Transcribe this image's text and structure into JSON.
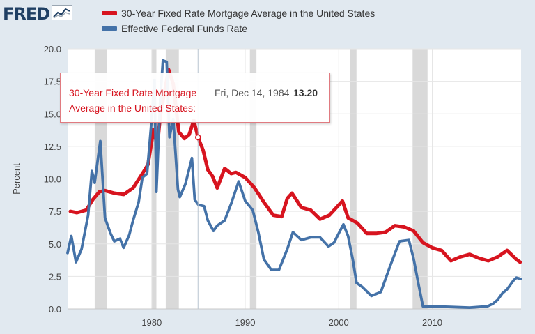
{
  "header": {
    "logo": "FRED",
    "logo_icon": "line-chart-icon"
  },
  "legend": [
    {
      "label": "30-Year Fixed Rate Mortgage Average in the United States",
      "color": "#d7141f"
    },
    {
      "label": "Effective Federal Funds Rate",
      "color": "#4472a8"
    }
  ],
  "tooltip": {
    "series": "30-Year Fixed Rate Mortgage Average in the United States:",
    "date": "Fri, Dec 14, 1984",
    "value": "13.20"
  },
  "chart_data": {
    "type": "line",
    "ylabel": "Percent",
    "ylim": [
      0,
      20
    ],
    "xlim": [
      1971.0,
      2019.5
    ],
    "yticks": [
      "0.0",
      "2.5",
      "5.0",
      "7.5",
      "10.0",
      "12.5",
      "15.0",
      "17.5",
      "20.0"
    ],
    "xticks": [
      "1980",
      "1990",
      "2000",
      "2010"
    ],
    "grid": true,
    "recessions": [
      [
        1973.9,
        1975.2
      ],
      [
        1980.0,
        1980.5
      ],
      [
        1981.5,
        1982.9
      ],
      [
        1990.5,
        1991.2
      ],
      [
        2001.2,
        2001.9
      ],
      [
        2007.9,
        2009.5
      ]
    ],
    "series": [
      {
        "name": "30-Year Fixed Rate Mortgage Average in the United States",
        "color": "#d7141f",
        "points": [
          [
            1971.3,
            7.5
          ],
          [
            1972,
            7.4
          ],
          [
            1973,
            7.6
          ],
          [
            1973.7,
            8.4
          ],
          [
            1974.4,
            9.0
          ],
          [
            1975,
            9.1
          ],
          [
            1976,
            8.9
          ],
          [
            1977,
            8.8
          ],
          [
            1978,
            9.3
          ],
          [
            1979,
            10.4
          ],
          [
            1979.6,
            11.1
          ],
          [
            1980.2,
            13.8
          ],
          [
            1980.6,
            12.5
          ],
          [
            1980.9,
            14.8
          ],
          [
            1981.3,
            16.4
          ],
          [
            1981.8,
            18.4
          ],
          [
            1982.3,
            17.3
          ],
          [
            1982.9,
            13.6
          ],
          [
            1983.5,
            13.1
          ],
          [
            1984.0,
            13.4
          ],
          [
            1984.5,
            14.5
          ],
          [
            1984.95,
            13.2
          ],
          [
            1985.5,
            12.2
          ],
          [
            1986,
            10.7
          ],
          [
            1986.5,
            10.2
          ],
          [
            1987,
            9.3
          ],
          [
            1987.8,
            10.8
          ],
          [
            1988.5,
            10.4
          ],
          [
            1989,
            10.5
          ],
          [
            1990,
            10.1
          ],
          [
            1991,
            9.3
          ],
          [
            1992,
            8.2
          ],
          [
            1993,
            7.2
          ],
          [
            1993.9,
            7.1
          ],
          [
            1994.5,
            8.5
          ],
          [
            1995,
            8.9
          ],
          [
            1996,
            7.8
          ],
          [
            1997,
            7.6
          ],
          [
            1998,
            6.9
          ],
          [
            1999,
            7.2
          ],
          [
            2000.4,
            8.3
          ],
          [
            2001,
            7.0
          ],
          [
            2002,
            6.6
          ],
          [
            2003,
            5.8
          ],
          [
            2004,
            5.8
          ],
          [
            2005,
            5.9
          ],
          [
            2006,
            6.4
          ],
          [
            2007,
            6.3
          ],
          [
            2008,
            6.0
          ],
          [
            2009,
            5.1
          ],
          [
            2010,
            4.7
          ],
          [
            2011,
            4.5
          ],
          [
            2012,
            3.7
          ],
          [
            2013,
            4.0
          ],
          [
            2014,
            4.2
          ],
          [
            2015,
            3.9
          ],
          [
            2016,
            3.7
          ],
          [
            2017,
            4.0
          ],
          [
            2018,
            4.5
          ],
          [
            2019,
            3.8
          ],
          [
            2019.4,
            3.6
          ]
        ]
      },
      {
        "name": "Effective Federal Funds Rate",
        "color": "#4472a8",
        "points": [
          [
            1971.0,
            4.3
          ],
          [
            1971.4,
            5.6
          ],
          [
            1971.9,
            3.6
          ],
          [
            1972.5,
            4.6
          ],
          [
            1973.2,
            7.2
          ],
          [
            1973.6,
            10.6
          ],
          [
            1973.9,
            9.7
          ],
          [
            1974.5,
            12.9
          ],
          [
            1975,
            7.0
          ],
          [
            1975.6,
            5.8
          ],
          [
            1976,
            5.2
          ],
          [
            1976.6,
            5.4
          ],
          [
            1977,
            4.7
          ],
          [
            1977.6,
            5.7
          ],
          [
            1978,
            6.8
          ],
          [
            1978.6,
            8.2
          ],
          [
            1979,
            10.1
          ],
          [
            1979.5,
            10.4
          ],
          [
            1979.9,
            13.8
          ],
          [
            1980.3,
            17.6
          ],
          [
            1980.5,
            9.0
          ],
          [
            1980.9,
            16.0
          ],
          [
            1981.2,
            19.1
          ],
          [
            1981.6,
            19.0
          ],
          [
            1981.9,
            13.2
          ],
          [
            1982.3,
            14.6
          ],
          [
            1982.8,
            9.2
          ],
          [
            1983,
            8.6
          ],
          [
            1983.6,
            9.6
          ],
          [
            1984.3,
            11.6
          ],
          [
            1984.6,
            8.4
          ],
          [
            1985,
            8.0
          ],
          [
            1985.6,
            7.9
          ],
          [
            1986,
            6.8
          ],
          [
            1986.6,
            6.0
          ],
          [
            1987,
            6.4
          ],
          [
            1987.8,
            6.8
          ],
          [
            1988.5,
            8.1
          ],
          [
            1989.3,
            9.8
          ],
          [
            1990,
            8.3
          ],
          [
            1990.8,
            7.6
          ],
          [
            1991.4,
            5.9
          ],
          [
            1992,
            3.8
          ],
          [
            1992.8,
            3.0
          ],
          [
            1993.6,
            3.0
          ],
          [
            1994.5,
            4.6
          ],
          [
            1995.1,
            5.9
          ],
          [
            1996,
            5.3
          ],
          [
            1997,
            5.5
          ],
          [
            1998,
            5.5
          ],
          [
            1998.9,
            4.8
          ],
          [
            1999.5,
            5.1
          ],
          [
            2000.5,
            6.5
          ],
          [
            2001,
            5.6
          ],
          [
            2001.5,
            3.8
          ],
          [
            2001.9,
            2.0
          ],
          [
            2002.5,
            1.7
          ],
          [
            2003.5,
            1.0
          ],
          [
            2004.5,
            1.3
          ],
          [
            2005.5,
            3.3
          ],
          [
            2006.5,
            5.2
          ],
          [
            2007.5,
            5.3
          ],
          [
            2008,
            3.9
          ],
          [
            2008.5,
            2.0
          ],
          [
            2009,
            0.2
          ],
          [
            2010,
            0.2
          ],
          [
            2012,
            0.15
          ],
          [
            2014,
            0.1
          ],
          [
            2015.9,
            0.2
          ],
          [
            2016.5,
            0.4
          ],
          [
            2017,
            0.7
          ],
          [
            2017.5,
            1.2
          ],
          [
            2018,
            1.5
          ],
          [
            2018.7,
            2.2
          ],
          [
            2019.0,
            2.4
          ],
          [
            2019.5,
            2.3
          ]
        ]
      }
    ],
    "hover_point": [
      1984.95,
      13.2
    ]
  }
}
